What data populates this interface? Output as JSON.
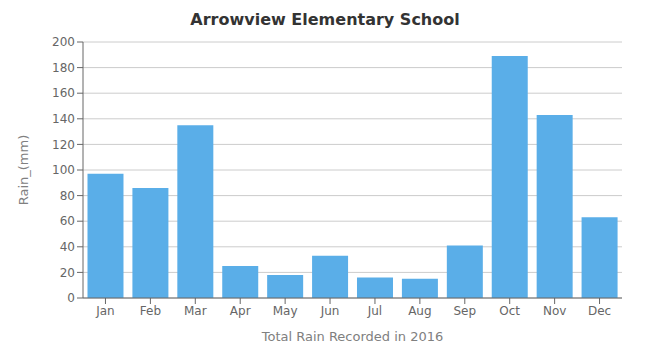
{
  "chart_data": {
    "type": "bar",
    "title": "Arrowview Elementary School",
    "xlabel": "Total Rain Recorded in 2016",
    "ylabel": "Rain_(mm)",
    "categories": [
      "Jan",
      "Feb",
      "Mar",
      "Apr",
      "May",
      "Jun",
      "Jul",
      "Aug",
      "Sep",
      "Oct",
      "Nov",
      "Dec"
    ],
    "values": [
      97,
      86,
      135,
      25,
      18,
      33,
      16,
      15,
      41,
      189,
      143,
      63
    ],
    "color": "#5aaee8",
    "ylim": [
      0,
      200
    ],
    "yticks": [
      0,
      20,
      40,
      60,
      80,
      100,
      120,
      140,
      160,
      180,
      200
    ],
    "grid": true
  }
}
